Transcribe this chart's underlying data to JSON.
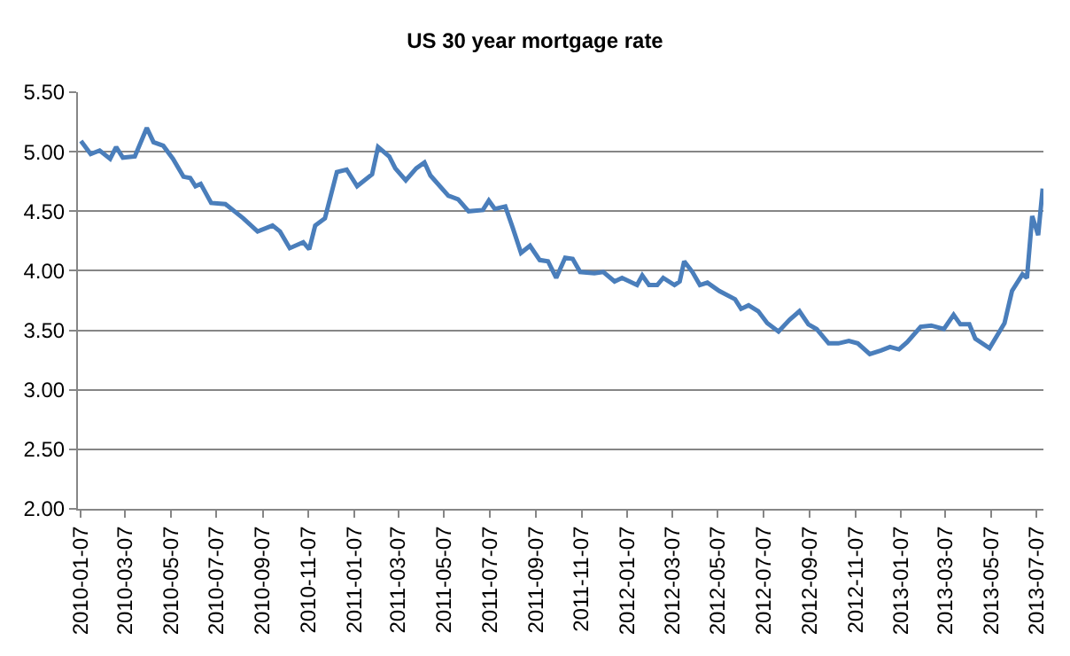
{
  "chart_data": {
    "type": "line",
    "title": "US 30 year mortgage rate",
    "x": [
      "2010-01-07",
      "2010-01-20",
      "2010-02-01",
      "2010-02-15",
      "2010-02-23",
      "2010-03-04",
      "2010-03-20",
      "2010-04-05",
      "2010-04-14",
      "2010-04-27",
      "2010-05-10",
      "2010-05-24",
      "2010-06-02",
      "2010-06-09",
      "2010-06-16",
      "2010-06-30",
      "2010-07-19",
      "2010-08-12",
      "2010-08-31",
      "2010-09-20",
      "2010-09-30",
      "2010-10-13",
      "2010-10-31",
      "2010-11-08",
      "2010-11-16",
      "2010-11-29",
      "2010-12-15",
      "2010-12-28",
      "2011-01-11",
      "2011-01-31",
      "2011-02-08",
      "2011-02-23",
      "2011-03-03",
      "2011-03-17",
      "2011-03-31",
      "2011-04-11",
      "2011-04-19",
      "2011-05-13",
      "2011-05-26",
      "2011-06-09",
      "2011-06-28",
      "2011-07-06",
      "2011-07-14",
      "2011-07-28",
      "2011-08-07",
      "2011-08-18",
      "2011-08-30",
      "2011-09-12",
      "2011-09-23",
      "2011-10-04",
      "2011-10-16",
      "2011-10-26",
      "2011-11-05",
      "2011-11-24",
      "2011-12-06",
      "2011-12-21",
      "2011-12-31",
      "2012-01-20",
      "2012-01-27",
      "2012-02-05",
      "2012-02-16",
      "2012-02-24",
      "2012-03-10",
      "2012-03-17",
      "2012-03-23",
      "2012-04-03",
      "2012-04-13",
      "2012-04-23",
      "2012-05-09",
      "2012-05-30",
      "2012-06-07",
      "2012-06-17",
      "2012-06-30",
      "2012-07-12",
      "2012-07-27",
      "2012-08-11",
      "2012-08-24",
      "2012-09-05",
      "2012-09-16",
      "2012-10-02",
      "2012-10-15",
      "2012-10-29",
      "2012-11-10",
      "2012-11-26",
      "2012-12-11",
      "2012-12-23",
      "2013-01-04",
      "2013-01-15",
      "2013-02-02",
      "2013-02-16",
      "2013-03-05",
      "2013-03-18",
      "2013-03-27",
      "2013-04-08",
      "2013-04-16",
      "2013-05-05",
      "2013-05-25",
      "2013-06-04",
      "2013-06-18",
      "2013-06-24",
      "2013-07-01",
      "2013-07-09",
      "2013-07-15"
    ],
    "series": [
      {
        "color": "#4a7ebb",
        "values": [
          5.09,
          4.98,
          5.01,
          4.94,
          5.04,
          4.95,
          4.96,
          5.2,
          5.08,
          5.05,
          4.94,
          4.79,
          4.78,
          4.71,
          4.73,
          4.57,
          4.56,
          4.44,
          4.33,
          4.38,
          4.33,
          4.19,
          4.24,
          4.18,
          4.38,
          4.44,
          4.83,
          4.85,
          4.71,
          4.81,
          5.04,
          4.96,
          4.86,
          4.76,
          4.86,
          4.91,
          4.8,
          4.63,
          4.6,
          4.5,
          4.51,
          4.59,
          4.52,
          4.54,
          4.36,
          4.15,
          4.21,
          4.09,
          4.08,
          3.94,
          4.11,
          4.1,
          3.99,
          3.98,
          3.99,
          3.91,
          3.94,
          3.88,
          3.96,
          3.88,
          3.88,
          3.94,
          3.88,
          3.91,
          4.08,
          3.99,
          3.88,
          3.9,
          3.83,
          3.76,
          3.68,
          3.71,
          3.66,
          3.56,
          3.49,
          3.59,
          3.66,
          3.55,
          3.51,
          3.39,
          3.39,
          3.41,
          3.39,
          3.3,
          3.33,
          3.36,
          3.34,
          3.4,
          3.53,
          3.54,
          3.51,
          3.63,
          3.55,
          3.55,
          3.43,
          3.35,
          3.56,
          3.83,
          3.97,
          3.94,
          4.46,
          4.3,
          4.69
        ]
      }
    ],
    "xlim": [
      "2010-01-03",
      "2013-07-16"
    ],
    "xticks": [
      "2010-01-07",
      "2010-03-07",
      "2010-05-07",
      "2010-07-07",
      "2010-09-07",
      "2010-11-07",
      "2011-01-07",
      "2011-03-07",
      "2011-05-07",
      "2011-07-07",
      "2011-09-07",
      "2011-11-07",
      "2012-01-07",
      "2012-03-07",
      "2012-05-07",
      "2012-07-07",
      "2012-09-07",
      "2012-11-07",
      "2013-01-07",
      "2013-03-07",
      "2013-05-07",
      "2013-07-07"
    ],
    "ylim": [
      2,
      5.5
    ],
    "yticks": [
      {
        "value": 2,
        "label": "2.00"
      },
      {
        "value": 2.5,
        "label": "2.50"
      },
      {
        "value": 3,
        "label": "3.00"
      },
      {
        "value": 3.5,
        "label": "3.50"
      },
      {
        "value": 4,
        "label": "4.00"
      },
      {
        "value": 4.5,
        "label": "4.50"
      },
      {
        "value": 5,
        "label": "5.00"
      },
      {
        "value": 5.5,
        "label": "5.50"
      }
    ],
    "grid": "y",
    "marker": "none",
    "line_style": "solid"
  }
}
